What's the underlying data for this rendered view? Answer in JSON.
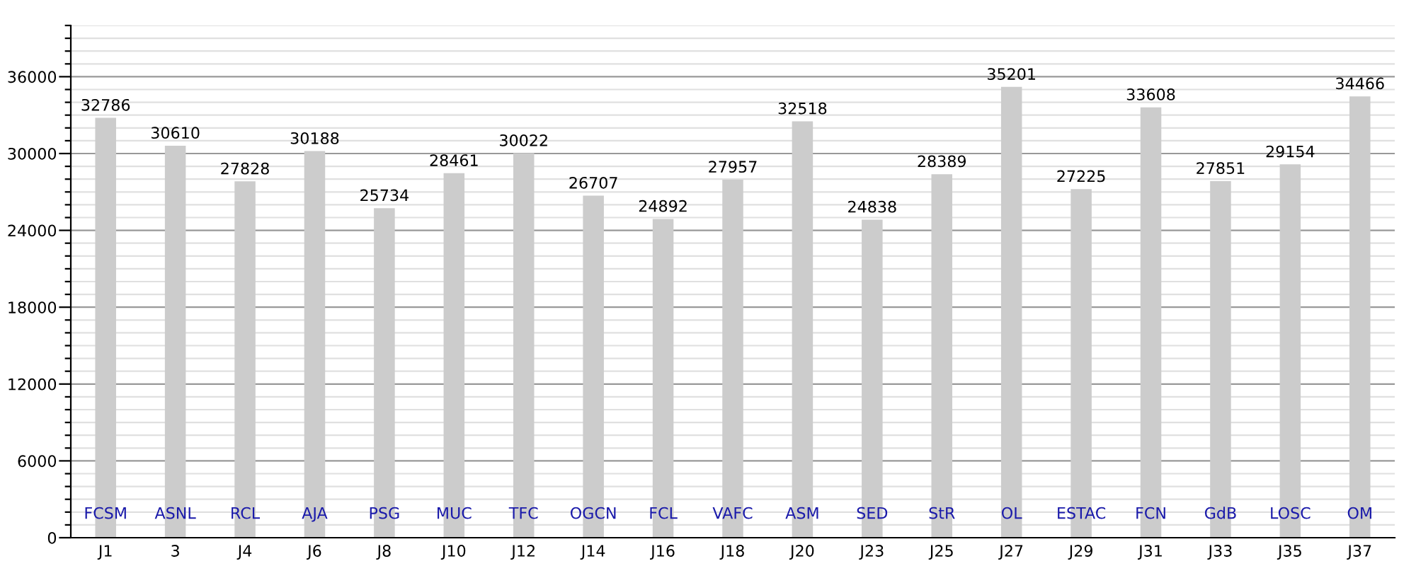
{
  "chart_data": {
    "type": "bar",
    "categories": [
      "J1",
      "3",
      "J4",
      "J6",
      "J8",
      "J10",
      "J12",
      "J14",
      "J16",
      "J18",
      "J20",
      "J23",
      "J25",
      "J27",
      "J29",
      "J31",
      "J33",
      "J35",
      "J37"
    ],
    "values": [
      32786,
      30610,
      27828,
      30188,
      25734,
      28461,
      30022,
      26707,
      24892,
      27957,
      32518,
      24838,
      28389,
      35201,
      27225,
      33608,
      27851,
      29154,
      34466
    ],
    "color": "#cccccc",
    "data_labels": true,
    "ylim": [
      0,
      40000
    ],
    "yticks": [
      0,
      {
        "value": 1000,
        "label": null
      },
      {
        "value": 2000,
        "label": null
      },
      {
        "value": 3000,
        "label": null
      },
      {
        "value": 4000,
        "label": null
      },
      {
        "value": 5000,
        "label": null
      },
      6000,
      {
        "value": 7000,
        "label": null
      },
      {
        "value": 8000,
        "label": null
      },
      {
        "value": 9000,
        "label": null
      },
      {
        "value": 10000,
        "label": null
      },
      {
        "value": 11000,
        "label": null
      },
      12000,
      {
        "value": 13000,
        "label": null
      },
      {
        "value": 14000,
        "label": null
      },
      {
        "value": 15000,
        "label": null
      },
      {
        "value": 16000,
        "label": null
      },
      {
        "value": 17000,
        "label": null
      },
      18000,
      {
        "value": 19000,
        "label": null
      },
      {
        "value": 20000,
        "label": null
      },
      {
        "value": 21000,
        "label": null
      },
      {
        "value": 22000,
        "label": null
      },
      {
        "value": 23000,
        "label": null
      },
      24000,
      {
        "value": 25000,
        "label": null
      },
      {
        "value": 26000,
        "label": null
      },
      {
        "value": 27000,
        "label": null
      },
      {
        "value": 28000,
        "label": null
      },
      {
        "value": 29000,
        "label": null
      },
      30000,
      {
        "value": 31000,
        "label": null
      },
      {
        "value": 32000,
        "label": null
      },
      {
        "value": 33000,
        "label": null
      },
      {
        "value": 34000,
        "label": null
      },
      {
        "value": 35000,
        "label": null
      },
      36000,
      {
        "value": 37000,
        "label": null
      },
      {
        "value": 38000,
        "label": null
      },
      {
        "value": 39000,
        "label": null
      },
      {
        "value": 40000,
        "label": null
      }
    ],
    "grid": "y",
    "annotations": [
      "FCSM",
      "ASNL",
      "RCL",
      "AJA",
      "PSG",
      "MUC",
      "TFC",
      "OGCN",
      "FCL",
      "VAFC",
      "ASM",
      "SED",
      "StR",
      "OL",
      "ESTAC",
      "FCN",
      "GdB",
      "LOSC",
      "OM"
    ]
  }
}
